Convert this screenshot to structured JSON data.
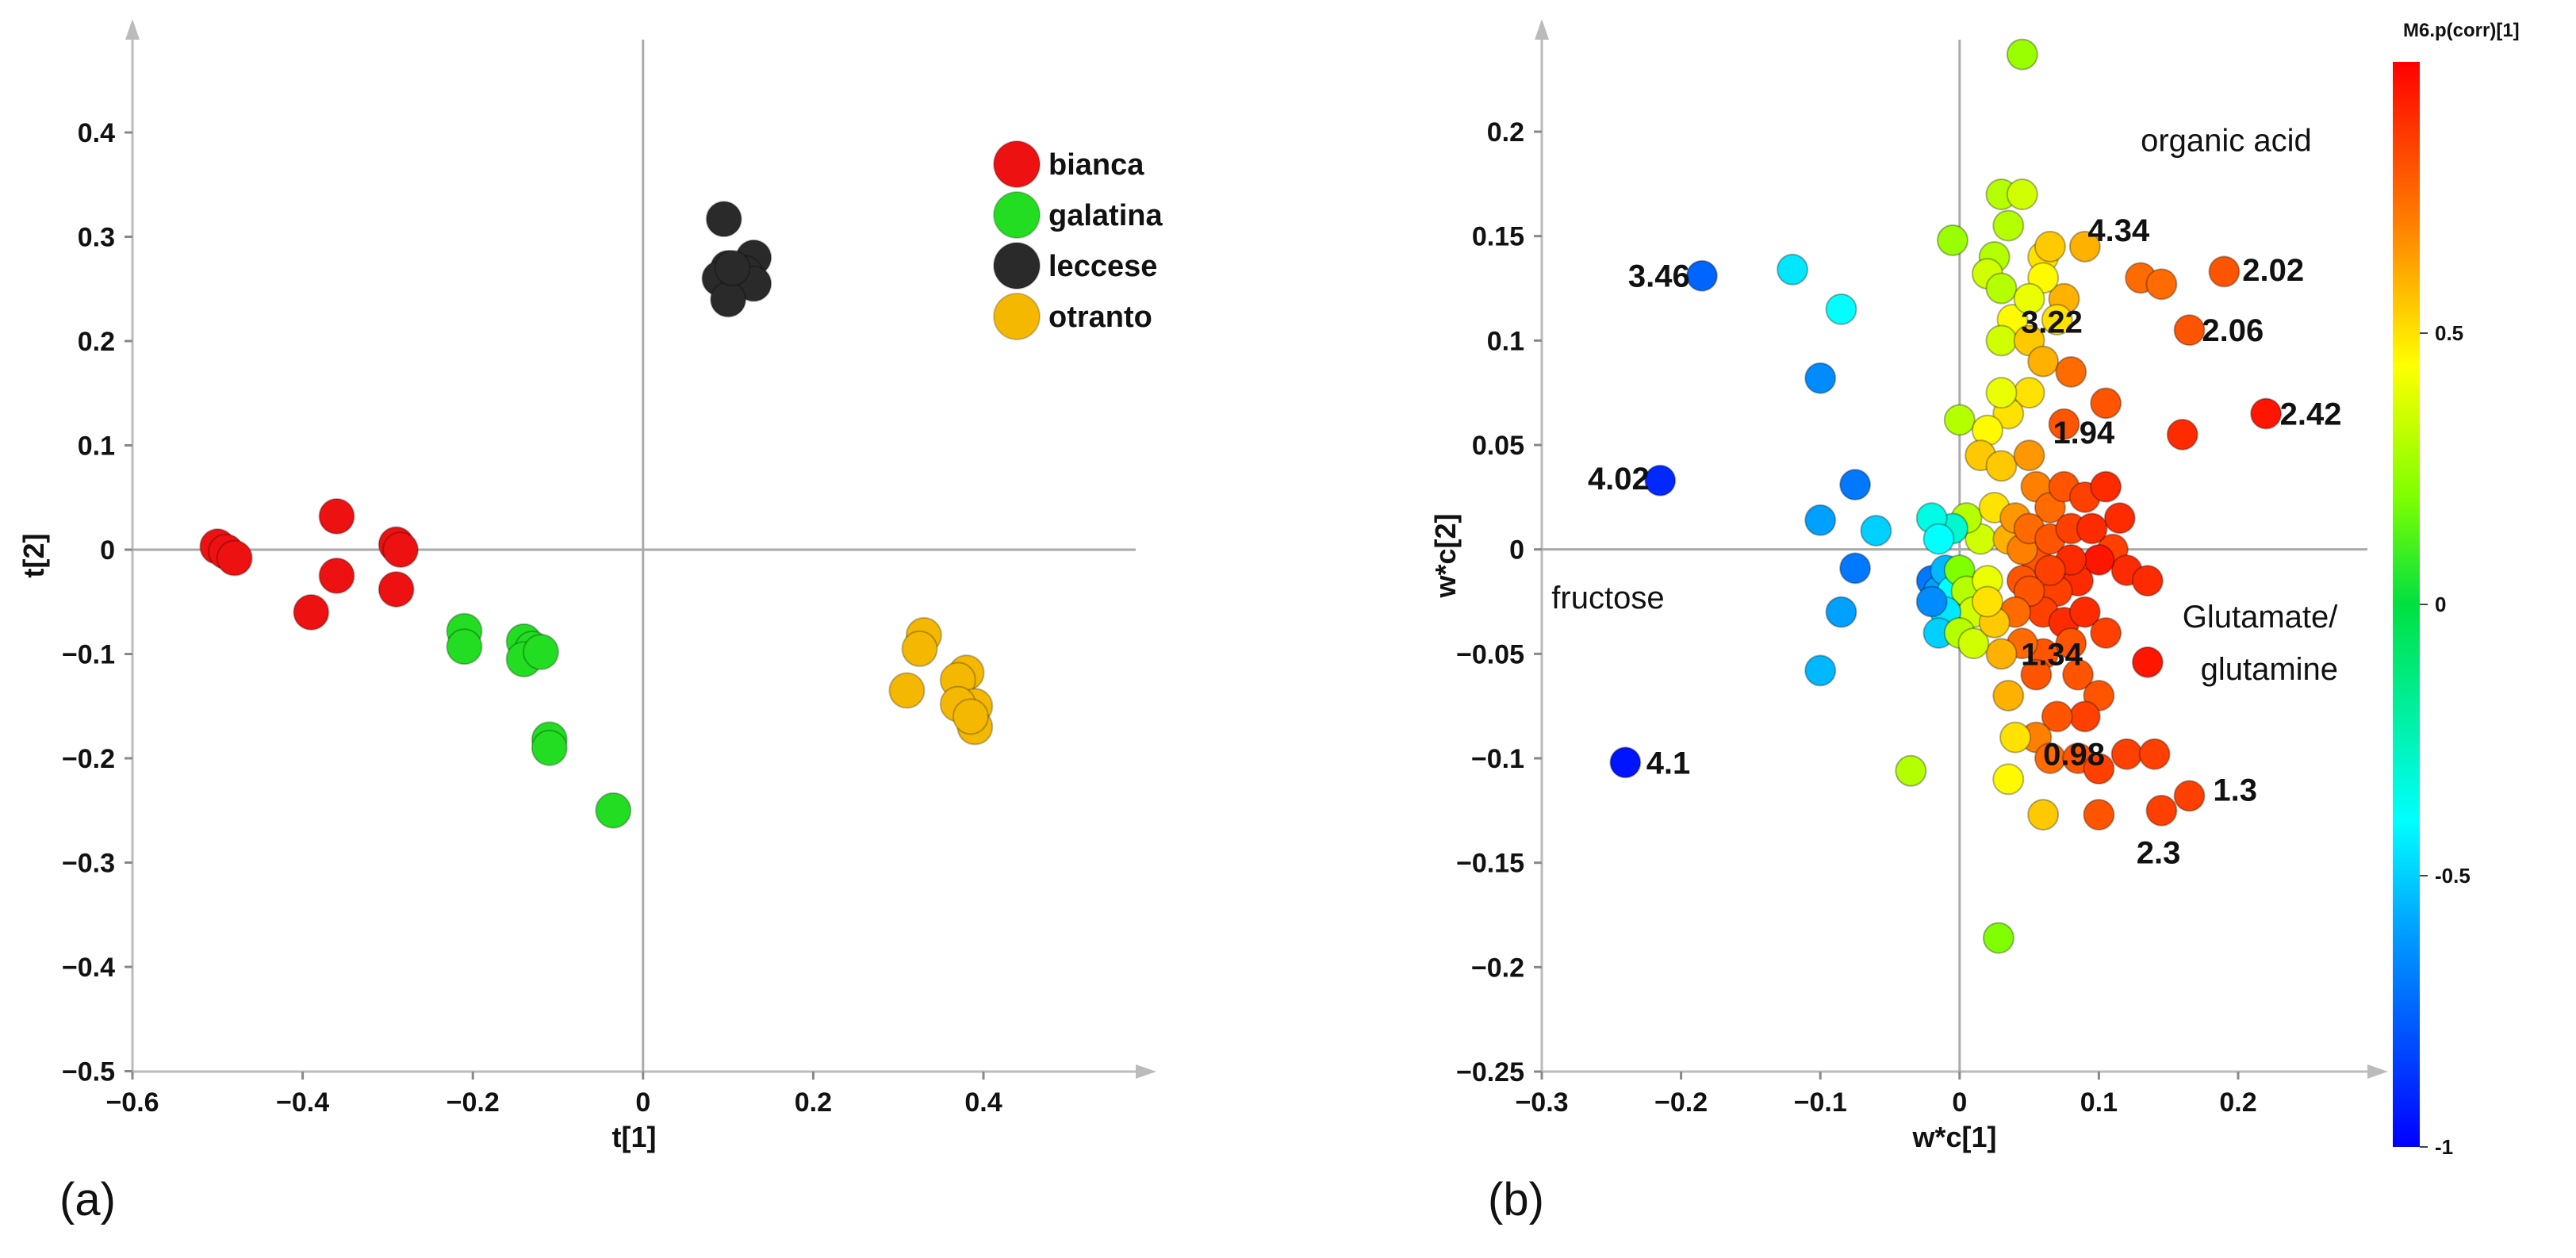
{
  "chart_data": [
    {
      "type": "scatter",
      "panel_label": "(a)",
      "xlabel": "t[1]",
      "ylabel": "t[2]",
      "xlim": [
        -0.6,
        0.6
      ],
      "ylim": [
        -0.5,
        0.45
      ],
      "xticks": [
        -0.6,
        -0.4,
        -0.2,
        0,
        0.2,
        0.4
      ],
      "xtick_labels": [
        "−0.6",
        "−0.4",
        "−0.2",
        "0",
        "0.2",
        "0.4"
      ],
      "yticks": [
        -0.5,
        -0.4,
        -0.3,
        -0.2,
        -0.1,
        0,
        0.1,
        0.2,
        0.3,
        0.4
      ],
      "ytick_labels": [
        "−0.5",
        "−0.4",
        "−0.3",
        "−0.2",
        "−0.1",
        "0",
        "0.1",
        "0.2",
        "0.3",
        "0.4"
      ],
      "legend_position": "top-right",
      "series": [
        {
          "name": "bianca",
          "color": "#ee1111",
          "points": [
            [
              -0.5,
              0.003
            ],
            [
              -0.49,
              -0.002
            ],
            [
              -0.48,
              -0.008
            ],
            [
              -0.36,
              0.032
            ],
            [
              -0.36,
              -0.025
            ],
            [
              -0.39,
              -0.06
            ],
            [
              -0.29,
              0.005
            ],
            [
              -0.285,
              0.0
            ],
            [
              -0.29,
              -0.038
            ]
          ]
        },
        {
          "name": "galatina",
          "color": "#22dd22",
          "points": [
            [
              -0.21,
              -0.078
            ],
            [
              -0.21,
              -0.093
            ],
            [
              -0.14,
              -0.088
            ],
            [
              -0.13,
              -0.095
            ],
            [
              -0.14,
              -0.105
            ],
            [
              -0.12,
              -0.098
            ],
            [
              -0.11,
              -0.182
            ],
            [
              -0.11,
              -0.19
            ],
            [
              -0.035,
              -0.25
            ]
          ]
        },
        {
          "name": "leccese",
          "color": "#2a2a2a",
          "points": [
            [
              0.095,
              0.317
            ],
            [
              0.13,
              0.28
            ],
            [
              0.12,
              0.265
            ],
            [
              0.1,
              0.27
            ],
            [
              0.09,
              0.26
            ],
            [
              0.13,
              0.255
            ],
            [
              0.1,
              0.24
            ],
            [
              0.105,
              0.27
            ]
          ]
        },
        {
          "name": "otranto",
          "color": "#f5b800",
          "points": [
            [
              0.33,
              -0.082
            ],
            [
              0.325,
              -0.095
            ],
            [
              0.38,
              -0.118
            ],
            [
              0.37,
              -0.125
            ],
            [
              0.39,
              -0.15
            ],
            [
              0.37,
              -0.148
            ],
            [
              0.39,
              -0.17
            ],
            [
              0.31,
              -0.135
            ],
            [
              0.385,
              -0.16
            ]
          ]
        }
      ]
    },
    {
      "type": "scatter",
      "panel_label": "(b)",
      "xlabel": "w*c[1]",
      "ylabel": "w*c[2]",
      "xlim": [
        -0.3,
        0.3
      ],
      "ylim": [
        -0.25,
        0.25
      ],
      "xticks": [
        -0.3,
        -0.2,
        -0.1,
        0,
        0.1,
        0.2
      ],
      "xtick_labels": [
        "−0.3",
        "−0.2",
        "−0.1",
        "0",
        "0.1",
        "0.2"
      ],
      "yticks": [
        -0.25,
        -0.2,
        -0.15,
        -0.1,
        -0.05,
        0,
        0.05,
        0.1,
        0.15,
        0.2
      ],
      "ytick_labels": [
        "−0.25",
        "−0.2",
        "−0.15",
        "−0.1",
        "−0.05",
        "0",
        "0.05",
        "0.1",
        "0.15",
        "0.2"
      ],
      "colorbar": {
        "title": "M6.p(corr)[1]",
        "range": [
          -1,
          1
        ],
        "ticks": [
          -1,
          -0.5,
          0,
          0.5
        ],
        "tick_labels": [
          "-1",
          "-0.5",
          "0",
          "0.5"
        ]
      },
      "point_labels": [
        {
          "text": "3.46",
          "x": -0.238,
          "y": 0.131
        },
        {
          "text": "4.02",
          "x": -0.267,
          "y": 0.034
        },
        {
          "text": "4.1",
          "x": -0.225,
          "y": -0.102
        },
        {
          "text": "4.34",
          "x": 0.092,
          "y": 0.153
        },
        {
          "text": "2.02",
          "x": 0.203,
          "y": 0.134
        },
        {
          "text": "2.06",
          "x": 0.174,
          "y": 0.105
        },
        {
          "text": "3.22",
          "x": 0.044,
          "y": 0.109
        },
        {
          "text": "2.42",
          "x": 0.23,
          "y": 0.065
        },
        {
          "text": "1.94",
          "x": 0.067,
          "y": 0.056
        },
        {
          "text": "1.34",
          "x": 0.044,
          "y": -0.05
        },
        {
          "text": "0.98",
          "x": 0.06,
          "y": -0.098
        },
        {
          "text": "1.3",
          "x": 0.182,
          "y": -0.115
        },
        {
          "text": "2.3",
          "x": 0.127,
          "y": -0.145
        }
      ],
      "annotations": [
        {
          "text": "organic acid",
          "x": 0.13,
          "y": 0.196
        },
        {
          "text": "fructose",
          "x": -0.293,
          "y": -0.023
        },
        {
          "text": "Glutamate/",
          "x": 0.16,
          "y": -0.032
        },
        {
          "text": "glutamine",
          "x": 0.173,
          "y": -0.057
        }
      ],
      "points": [
        [
          0.045,
          0.237,
          0.25
        ],
        [
          -0.185,
          0.131,
          -0.75
        ],
        [
          -0.215,
          0.033,
          -0.9
        ],
        [
          -0.24,
          -0.102,
          -0.95
        ],
        [
          -0.12,
          0.134,
          -0.45
        ],
        [
          -0.085,
          0.115,
          -0.4
        ],
        [
          -0.1,
          0.082,
          -0.65
        ],
        [
          -0.075,
          0.031,
          -0.7
        ],
        [
          -0.1,
          0.014,
          -0.6
        ],
        [
          -0.06,
          0.009,
          -0.5
        ],
        [
          -0.075,
          -0.009,
          -0.7
        ],
        [
          -0.085,
          -0.03,
          -0.6
        ],
        [
          -0.1,
          -0.058,
          -0.55
        ],
        [
          -0.035,
          -0.106,
          0.3
        ],
        [
          0.028,
          -0.186,
          0.2
        ],
        [
          0.03,
          0.17,
          0.3
        ],
        [
          0.045,
          0.17,
          0.35
        ],
        [
          0.035,
          0.155,
          0.3
        ],
        [
          0.025,
          0.14,
          0.3
        ],
        [
          -0.005,
          0.148,
          0.25
        ],
        [
          0.02,
          0.132,
          0.35
        ],
        [
          0.03,
          0.125,
          0.3
        ],
        [
          0.038,
          0.11,
          0.45
        ],
        [
          0.03,
          0.1,
          0.35
        ],
        [
          0.05,
          0.1,
          0.55
        ],
        [
          0.06,
          0.09,
          0.6
        ],
        [
          0.05,
          0.075,
          0.5
        ],
        [
          0.035,
          0.065,
          0.5
        ],
        [
          0.03,
          0.075,
          0.4
        ],
        [
          0.0,
          0.062,
          0.3
        ],
        [
          0.02,
          0.057,
          0.45
        ],
        [
          0.015,
          0.045,
          0.55
        ],
        [
          0.03,
          0.04,
          0.55
        ],
        [
          0.05,
          0.045,
          0.65
        ],
        [
          0.055,
          0.03,
          0.7
        ],
        [
          0.065,
          0.02,
          0.75
        ],
        [
          0.075,
          0.03,
          0.8
        ],
        [
          0.09,
          0.025,
          0.85
        ],
        [
          0.105,
          0.03,
          0.9
        ],
        [
          0.115,
          0.015,
          0.9
        ],
        [
          0.06,
          0.14,
          0.5
        ],
        [
          0.065,
          0.145,
          0.55
        ],
        [
          0.09,
          0.145,
          0.6
        ],
        [
          0.075,
          0.12,
          0.6
        ],
        [
          0.06,
          0.13,
          0.45
        ],
        [
          0.05,
          0.12,
          0.4
        ],
        [
          0.07,
          0.11,
          0.5
        ],
        [
          0.08,
          0.085,
          0.75
        ],
        [
          0.105,
          0.07,
          0.8
        ],
        [
          0.13,
          0.13,
          0.75
        ],
        [
          0.145,
          0.127,
          0.75
        ],
        [
          0.19,
          0.133,
          0.8
        ],
        [
          0.165,
          0.105,
          0.8
        ],
        [
          0.22,
          0.065,
          0.95
        ],
        [
          0.16,
          0.055,
          0.9
        ],
        [
          0.075,
          0.06,
          0.8
        ],
        [
          0.11,
          0.0,
          0.85
        ],
        [
          0.12,
          -0.01,
          0.9
        ],
        [
          0.135,
          -0.015,
          0.9
        ],
        [
          0.1,
          -0.005,
          0.95
        ],
        [
          0.085,
          -0.015,
          0.9
        ],
        [
          0.07,
          -0.02,
          0.85
        ],
        [
          0.055,
          -0.005,
          0.8
        ],
        [
          0.045,
          -0.015,
          0.8
        ],
        [
          0.06,
          -0.03,
          0.85
        ],
        [
          0.075,
          -0.035,
          0.9
        ],
        [
          0.09,
          -0.03,
          0.9
        ],
        [
          0.105,
          -0.04,
          0.85
        ],
        [
          0.08,
          -0.045,
          0.8
        ],
        [
          0.06,
          -0.05,
          0.8
        ],
        [
          0.045,
          -0.045,
          0.75
        ],
        [
          0.03,
          -0.05,
          0.6
        ],
        [
          0.035,
          -0.07,
          0.6
        ],
        [
          0.055,
          -0.06,
          0.8
        ],
        [
          0.085,
          -0.06,
          0.8
        ],
        [
          0.1,
          -0.07,
          0.8
        ],
        [
          0.09,
          -0.08,
          0.85
        ],
        [
          0.07,
          -0.08,
          0.8
        ],
        [
          0.055,
          -0.09,
          0.7
        ],
        [
          0.04,
          -0.09,
          0.5
        ],
        [
          0.035,
          -0.11,
          0.45
        ],
        [
          0.065,
          -0.1,
          0.75
        ],
        [
          0.085,
          -0.1,
          0.8
        ],
        [
          0.1,
          -0.105,
          0.85
        ],
        [
          0.12,
          -0.098,
          0.85
        ],
        [
          0.14,
          -0.098,
          0.85
        ],
        [
          0.165,
          -0.118,
          0.85
        ],
        [
          0.145,
          -0.125,
          0.85
        ],
        [
          0.1,
          -0.127,
          0.8
        ],
        [
          0.06,
          -0.127,
          0.55
        ],
        [
          0.135,
          -0.054,
          0.95
        ],
        [
          -0.02,
          -0.015,
          -0.7
        ],
        [
          -0.015,
          -0.02,
          -0.6
        ],
        [
          -0.01,
          -0.01,
          -0.55
        ],
        [
          -0.005,
          -0.02,
          -0.4
        ],
        [
          0.0,
          -0.01,
          0.2
        ],
        [
          0.005,
          -0.02,
          0.3
        ],
        [
          0.01,
          -0.03,
          0.35
        ],
        [
          -0.01,
          -0.03,
          -0.45
        ],
        [
          -0.015,
          -0.04,
          -0.5
        ],
        [
          -0.02,
          -0.025,
          -0.65
        ],
        [
          0.0,
          -0.04,
          0.3
        ],
        [
          0.01,
          -0.045,
          0.35
        ],
        [
          0.02,
          -0.015,
          0.4
        ],
        [
          0.015,
          0.005,
          0.35
        ],
        [
          0.005,
          0.015,
          0.3
        ],
        [
          -0.005,
          0.01,
          -0.3
        ],
        [
          -0.02,
          0.015,
          -0.35
        ],
        [
          -0.015,
          0.005,
          -0.4
        ],
        [
          0.025,
          0.02,
          0.5
        ],
        [
          0.035,
          0.005,
          0.6
        ],
        [
          0.045,
          0.0,
          0.7
        ],
        [
          0.04,
          0.015,
          0.65
        ],
        [
          0.05,
          0.01,
          0.75
        ],
        [
          0.065,
          0.005,
          0.8
        ],
        [
          0.08,
          0.01,
          0.85
        ],
        [
          0.095,
          0.01,
          0.9
        ],
        [
          0.08,
          -0.005,
          0.9
        ],
        [
          0.065,
          -0.01,
          0.85
        ],
        [
          0.05,
          -0.02,
          0.8
        ],
        [
          0.04,
          -0.03,
          0.75
        ],
        [
          0.025,
          -0.035,
          0.55
        ],
        [
          0.02,
          -0.025,
          0.5
        ]
      ]
    }
  ]
}
